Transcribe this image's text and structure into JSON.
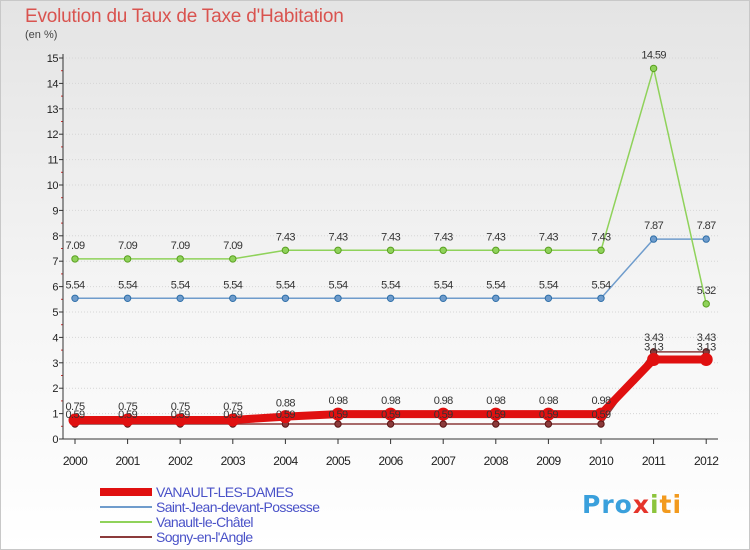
{
  "header": {
    "title": "Evolution du Taux de Taxe d'Habitation",
    "subtitle": "(en %)"
  },
  "logo": {
    "text": "Proxiti",
    "colors": [
      "#3aa0dc",
      "#f29a1e",
      "#8cc43c",
      "#e5342a"
    ]
  },
  "chart_data": {
    "type": "line",
    "title": "Evolution du Taux de Taxe d'Habitation",
    "ylabel": "(en %)",
    "xlabel": "",
    "x": [
      "2000",
      "2001",
      "2002",
      "2003",
      "2004",
      "2005",
      "2006",
      "2007",
      "2008",
      "2009",
      "2010",
      "2011",
      "2012"
    ],
    "ylim": [
      0,
      15
    ],
    "yticks": [
      "0",
      "1",
      "2",
      "3",
      "4",
      "5",
      "6",
      "7",
      "8",
      "9",
      "10",
      "11",
      "12",
      "13",
      "14",
      "15"
    ],
    "grid": true,
    "series": [
      {
        "name": "VANAULT-LES-DAMES",
        "color": "#e01010",
        "values": [
          0.75,
          0.75,
          0.75,
          0.75,
          0.88,
          0.98,
          0.98,
          0.98,
          0.98,
          0.98,
          0.98,
          3.13,
          3.13
        ],
        "labels": [
          "0.75",
          "0.75",
          "0.75",
          "0.75",
          "0.88",
          "0.98",
          "0.98",
          "0.98",
          "0.98",
          "0.98",
          "0.98",
          "3.13",
          "3.13"
        ]
      },
      {
        "name": "Saint-Jean-devant-Possesse",
        "color": "#6f9ccc",
        "values": [
          5.54,
          5.54,
          5.54,
          5.54,
          5.54,
          5.54,
          5.54,
          5.54,
          5.54,
          5.54,
          5.54,
          7.87,
          7.87
        ],
        "labels": [
          "5.54",
          "5.54",
          "5.54",
          "5.54",
          "5.54",
          "5.54",
          "5.54",
          "5.54",
          "5.54",
          "5.54",
          "5.54",
          "7.87",
          "7.87"
        ]
      },
      {
        "name": "Vanault-le-Châtel",
        "color": "#8fd25a",
        "values": [
          7.09,
          7.09,
          7.09,
          7.09,
          7.43,
          7.43,
          7.43,
          7.43,
          7.43,
          7.43,
          7.43,
          14.59,
          5.32
        ],
        "labels": [
          "7.09",
          "7.09",
          "7.09",
          "7.09",
          "7.43",
          "7.43",
          "7.43",
          "7.43",
          "7.43",
          "7.43",
          "7.43",
          "14.59",
          "5.32"
        ]
      },
      {
        "name": "Sogny-en-l'Angle",
        "color": "#8b3a3a",
        "values": [
          0.59,
          0.59,
          0.59,
          0.59,
          0.59,
          0.59,
          0.59,
          0.59,
          0.59,
          0.59,
          0.59,
          3.43,
          3.43
        ],
        "labels": [
          "0.59",
          "0.59",
          "0.59",
          "0.59",
          "0.59",
          "0.59",
          "0.59",
          "0.59",
          "0.59",
          "0.59",
          "0.59",
          "3.43",
          "3.43"
        ]
      }
    ]
  }
}
